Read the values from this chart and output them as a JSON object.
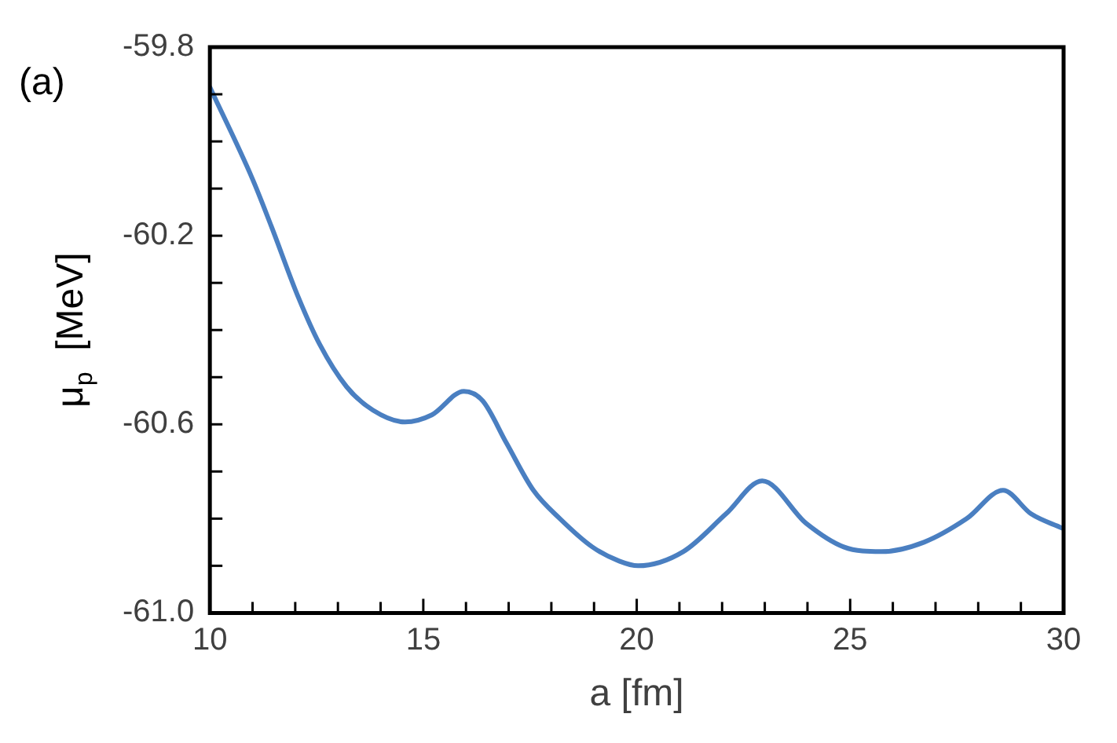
{
  "chart_data": {
    "type": "line",
    "xlabel": "a [fm]",
    "ylabel": "μ$_{p}$  [MeV]",
    "annotations": [
      "(a)"
    ],
    "series": [
      {
        "color": "#4a7fc1",
        "x": [
          10,
          11.0,
          11.44,
          12.07,
          12.57,
          13.2,
          13.82,
          14.57,
          15.2,
          15.95,
          16.39,
          16.95,
          17.58,
          18.2,
          18.96,
          19.59,
          20.03,
          21.09,
          22.09,
          22.94,
          23.97,
          24.85,
          25.73,
          26.73,
          27.73,
          28.58,
          29.24,
          29.96
        ],
        "values": [
          -59.885,
          -60.08,
          -60.18,
          -60.33,
          -60.43,
          -60.52,
          -60.57,
          -60.595,
          -60.58,
          -60.53,
          -60.55,
          -60.64,
          -60.74,
          -60.8,
          -60.86,
          -60.89,
          -60.9,
          -60.87,
          -60.79,
          -60.72,
          -60.81,
          -60.86,
          -60.87,
          -60.85,
          -60.8,
          -60.74,
          -60.79,
          -60.82
        ]
      }
    ],
    "xlim": [
      10,
      30
    ],
    "ylim": [
      -61.0,
      -59.8
    ],
    "xticks": [
      10,
      {
        "value": 11,
        "label": null
      },
      {
        "value": 12,
        "label": null
      },
      {
        "value": 13,
        "label": null
      },
      {
        "value": 14,
        "label": null
      },
      15,
      {
        "value": 16,
        "label": null
      },
      {
        "value": 17,
        "label": null
      },
      {
        "value": 18,
        "label": null
      },
      {
        "value": 19,
        "label": null
      },
      20,
      {
        "value": 21,
        "label": null
      },
      {
        "value": 22,
        "label": null
      },
      {
        "value": 23,
        "label": null
      },
      {
        "value": 24,
        "label": null
      },
      25,
      {
        "value": 26,
        "label": null
      },
      {
        "value": 27,
        "label": null
      },
      {
        "value": 28,
        "label": null
      },
      {
        "value": 29,
        "label": null
      },
      30
    ],
    "yticks": [
      {
        "value": -61,
        "label": "-61.0"
      },
      {
        "value": -60.9,
        "label": null
      },
      {
        "value": -60.8,
        "label": null
      },
      {
        "value": -60.7,
        "label": null
      },
      -60.6,
      {
        "value": -60.5,
        "label": null
      },
      {
        "value": -60.4,
        "label": null
      },
      {
        "value": -60.3,
        "label": null
      },
      -60.2,
      {
        "value": -60.1,
        "label": null
      },
      {
        "value": -60.0,
        "label": null
      },
      {
        "value": -59.9,
        "label": null
      },
      -59.8
    ],
    "grid": false,
    "legend": false,
    "marker": "none",
    "line_style": "solid"
  }
}
